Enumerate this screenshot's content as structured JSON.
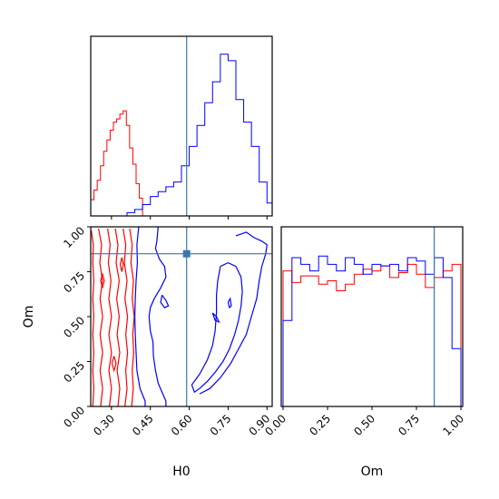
{
  "chart_data": {
    "type": "corner",
    "parameters": [
      "H0",
      "Om"
    ],
    "xlabel_h0": "H0",
    "xlabel_om": "Om",
    "ylabel_om": "Om",
    "truth": {
      "H0": 0.59,
      "Om": 0.85
    },
    "h0_range": [
      0.22,
      0.92
    ],
    "om_range": [
      0.0,
      1.0
    ],
    "h0_ticks": [
      "0.30",
      "0.45",
      "0.60",
      "0.75",
      "0.90"
    ],
    "h0_tick_values": [
      0.3,
      0.45,
      0.6,
      0.75,
      0.9
    ],
    "om_ticks": [
      "0.00",
      "0.25",
      "0.50",
      "0.75",
      "1.00"
    ],
    "om_tick_values": [
      0.0,
      0.25,
      0.5,
      0.75,
      1.0
    ],
    "colors": {
      "red": "#ff0000",
      "blue": "#0000ff",
      "truth": "#3a76b0"
    },
    "h0_hist_red": {
      "edges": [
        0.22,
        0.2325,
        0.245,
        0.2575,
        0.27,
        0.2825,
        0.295,
        0.3075,
        0.32,
        0.3325,
        0.345,
        0.3575,
        0.37,
        0.3825,
        0.395,
        0.4075,
        0.42
      ],
      "counts": [
        0.1,
        0.16,
        0.22,
        0.31,
        0.4,
        0.47,
        0.53,
        0.58,
        0.6,
        0.63,
        0.65,
        0.56,
        0.42,
        0.32,
        0.2,
        0.11
      ]
    },
    "h0_hist_blue": {
      "edges": [
        0.36,
        0.39,
        0.42,
        0.45,
        0.48,
        0.51,
        0.54,
        0.57,
        0.6,
        0.63,
        0.66,
        0.69,
        0.72,
        0.75,
        0.78,
        0.81,
        0.84,
        0.87,
        0.9,
        0.92
      ],
      "counts": [
        0.02,
        0.04,
        0.07,
        0.12,
        0.15,
        0.18,
        0.21,
        0.31,
        0.43,
        0.56,
        0.7,
        0.83,
        1.0,
        0.96,
        0.72,
        0.58,
        0.43,
        0.21,
        0.08
      ]
    },
    "om_hist_red": {
      "counts": [
        0.82,
        0.75,
        0.79,
        0.79,
        0.74,
        0.76,
        0.7,
        0.74,
        0.8,
        0.83,
        0.82,
        0.85,
        0.78,
        0.81,
        0.86,
        0.8,
        0.72,
        0.78,
        0.82,
        0.86
      ]
    },
    "om_hist_blue": {
      "counts": [
        0.52,
        0.9,
        0.86,
        0.82,
        0.91,
        0.86,
        0.82,
        0.9,
        0.86,
        0.8,
        0.86,
        0.85,
        0.86,
        0.82,
        0.9,
        0.88,
        0.8,
        0.9,
        0.78,
        0.35
      ]
    },
    "contours_red": [
      [
        [
          0.222,
          0.98
        ],
        [
          0.23,
          0.9
        ],
        [
          0.228,
          0.8
        ],
        [
          0.232,
          0.7
        ],
        [
          0.228,
          0.6
        ],
        [
          0.232,
          0.5
        ],
        [
          0.228,
          0.4
        ],
        [
          0.232,
          0.3
        ],
        [
          0.228,
          0.2
        ],
        [
          0.232,
          0.1
        ],
        [
          0.228,
          0.0
        ]
      ],
      [
        [
          0.25,
          0.99
        ],
        [
          0.262,
          0.9
        ],
        [
          0.255,
          0.8
        ],
        [
          0.265,
          0.7
        ],
        [
          0.256,
          0.6
        ],
        [
          0.266,
          0.5
        ],
        [
          0.256,
          0.4
        ],
        [
          0.266,
          0.3
        ],
        [
          0.256,
          0.2
        ],
        [
          0.266,
          0.1
        ],
        [
          0.258,
          0.0
        ]
      ],
      [
        [
          0.285,
          0.99
        ],
        [
          0.295,
          0.9
        ],
        [
          0.288,
          0.8
        ],
        [
          0.298,
          0.7
        ],
        [
          0.29,
          0.6
        ],
        [
          0.3,
          0.5
        ],
        [
          0.29,
          0.4
        ],
        [
          0.3,
          0.3
        ],
        [
          0.29,
          0.2
        ],
        [
          0.3,
          0.1
        ],
        [
          0.292,
          0.0
        ]
      ],
      [
        [
          0.315,
          0.99
        ],
        [
          0.325,
          0.9
        ],
        [
          0.318,
          0.8
        ],
        [
          0.33,
          0.7
        ],
        [
          0.32,
          0.6
        ],
        [
          0.33,
          0.5
        ],
        [
          0.322,
          0.4
        ],
        [
          0.332,
          0.3
        ],
        [
          0.322,
          0.2
        ],
        [
          0.332,
          0.1
        ],
        [
          0.325,
          0.0
        ]
      ],
      [
        [
          0.345,
          0.99
        ],
        [
          0.355,
          0.9
        ],
        [
          0.35,
          0.8
        ],
        [
          0.36,
          0.7
        ],
        [
          0.352,
          0.6
        ],
        [
          0.362,
          0.5
        ],
        [
          0.355,
          0.4
        ],
        [
          0.362,
          0.3
        ],
        [
          0.355,
          0.2
        ],
        [
          0.36,
          0.1
        ],
        [
          0.352,
          0.0
        ]
      ],
      [
        [
          0.37,
          0.99
        ],
        [
          0.38,
          0.9
        ],
        [
          0.375,
          0.8
        ],
        [
          0.385,
          0.7
        ],
        [
          0.38,
          0.6
        ],
        [
          0.388,
          0.5
        ],
        [
          0.382,
          0.4
        ],
        [
          0.386,
          0.3
        ],
        [
          0.38,
          0.2
        ],
        [
          0.384,
          0.1
        ],
        [
          0.378,
          0.0
        ]
      ],
      [
        [
          0.265,
          0.74
        ],
        [
          0.272,
          0.7
        ],
        [
          0.265,
          0.66
        ],
        [
          0.258,
          0.7
        ],
        [
          0.265,
          0.74
        ]
      ],
      [
        [
          0.31,
          0.28
        ],
        [
          0.318,
          0.24
        ],
        [
          0.31,
          0.2
        ],
        [
          0.302,
          0.24
        ],
        [
          0.31,
          0.28
        ]
      ],
      [
        [
          0.34,
          0.83
        ],
        [
          0.346,
          0.79
        ],
        [
          0.34,
          0.75
        ],
        [
          0.334,
          0.79
        ],
        [
          0.34,
          0.83
        ]
      ]
    ],
    "contours_blue": [
      [
        [
          0.405,
          1.0
        ],
        [
          0.398,
          0.9
        ],
        [
          0.4,
          0.8
        ],
        [
          0.395,
          0.7
        ],
        [
          0.392,
          0.6
        ],
        [
          0.39,
          0.5
        ],
        [
          0.392,
          0.4
        ],
        [
          0.395,
          0.3
        ],
        [
          0.398,
          0.2
        ],
        [
          0.41,
          0.1
        ],
        [
          0.43,
          0.03
        ],
        [
          0.43,
          0.0
        ]
      ],
      [
        [
          0.48,
          1.0
        ],
        [
          0.475,
          0.92
        ],
        [
          0.47,
          0.88
        ],
        [
          0.485,
          0.82
        ],
        [
          0.505,
          0.78
        ],
        [
          0.51,
          0.72
        ],
        [
          0.49,
          0.66
        ],
        [
          0.465,
          0.6
        ],
        [
          0.45,
          0.55
        ],
        [
          0.445,
          0.5
        ],
        [
          0.45,
          0.42
        ],
        [
          0.46,
          0.36
        ],
        [
          0.462,
          0.28
        ],
        [
          0.47,
          0.2
        ],
        [
          0.48,
          0.13
        ],
        [
          0.495,
          0.08
        ],
        [
          0.51,
          0.03
        ],
        [
          0.51,
          0.0
        ]
      ],
      [
        [
          0.495,
          0.62
        ],
        [
          0.51,
          0.59
        ],
        [
          0.52,
          0.56
        ],
        [
          0.505,
          0.55
        ],
        [
          0.49,
          0.58
        ],
        [
          0.495,
          0.62
        ]
      ],
      [
        [
          0.78,
          0.95
        ],
        [
          0.82,
          0.97
        ],
        [
          0.85,
          0.94
        ],
        [
          0.88,
          0.92
        ],
        [
          0.9,
          0.9
        ],
        [
          0.895,
          0.85
        ],
        [
          0.88,
          0.78
        ],
        [
          0.87,
          0.7
        ],
        [
          0.86,
          0.6
        ],
        [
          0.84,
          0.5
        ],
        [
          0.82,
          0.4
        ],
        [
          0.79,
          0.32
        ],
        [
          0.76,
          0.24
        ],
        [
          0.72,
          0.16
        ],
        [
          0.68,
          0.1
        ],
        [
          0.64,
          0.07
        ]
      ],
      [
        [
          0.72,
          0.78
        ],
        [
          0.75,
          0.8
        ],
        [
          0.78,
          0.78
        ],
        [
          0.8,
          0.72
        ],
        [
          0.805,
          0.64
        ],
        [
          0.8,
          0.56
        ],
        [
          0.79,
          0.48
        ],
        [
          0.775,
          0.4
        ],
        [
          0.755,
          0.32
        ],
        [
          0.73,
          0.25
        ],
        [
          0.7,
          0.19
        ],
        [
          0.67,
          0.14
        ],
        [
          0.64,
          0.1
        ],
        [
          0.62,
          0.08
        ],
        [
          0.61,
          0.12
        ],
        [
          0.64,
          0.18
        ],
        [
          0.67,
          0.26
        ],
        [
          0.69,
          0.34
        ],
        [
          0.7,
          0.42
        ],
        [
          0.705,
          0.52
        ],
        [
          0.705,
          0.62
        ],
        [
          0.71,
          0.7
        ],
        [
          0.72,
          0.78
        ]
      ],
      [
        [
          0.69,
          0.52
        ],
        [
          0.705,
          0.5
        ],
        [
          0.715,
          0.47
        ],
        [
          0.7,
          0.48
        ],
        [
          0.69,
          0.52
        ]
      ],
      [
        [
          0.75,
          0.58
        ],
        [
          0.758,
          0.6
        ],
        [
          0.762,
          0.56
        ],
        [
          0.755,
          0.55
        ],
        [
          0.75,
          0.58
        ]
      ]
    ]
  }
}
